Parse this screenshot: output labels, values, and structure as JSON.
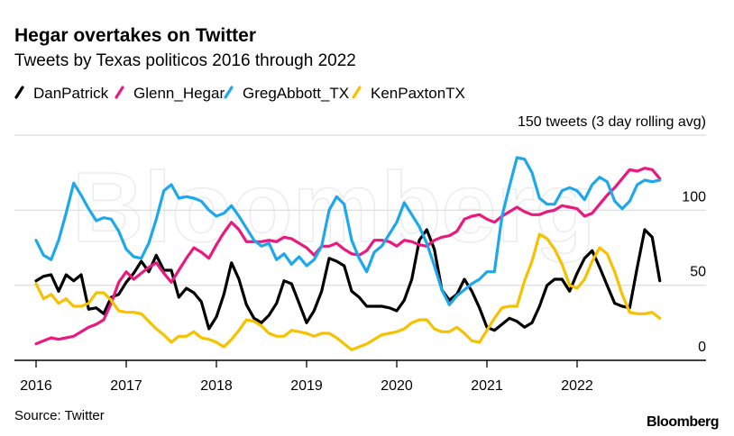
{
  "title": "Hegar overtakes on Twitter",
  "subtitle": "Tweets by Texas politicos 2016 through 2022",
  "source": "Source: Twitter",
  "logo": "Bloomberg",
  "watermark": "Bloomberg",
  "chart_data": {
    "type": "line",
    "title": "Hegar overtakes on Twitter",
    "subtitle": "Tweets by Texas politicos 2016 through 2022",
    "ylabel": "150 tweets (3 day rolling avg)",
    "ylim": [
      0,
      150
    ],
    "yticks": [
      "0",
      "50",
      "100",
      "150 tweets (3 day rolling avg)"
    ],
    "ytick_values": [
      0,
      50,
      100,
      150
    ],
    "xticks": [
      "2016",
      "2017",
      "2018",
      "2019",
      "2020",
      "2021",
      "2022"
    ],
    "xlim": [
      "2016-01",
      "2022-12"
    ],
    "grid": true,
    "legend_placement": "top-left",
    "x": [
      "2016-01",
      "2016-02",
      "2016-03",
      "2016-04",
      "2016-05",
      "2016-06",
      "2016-07",
      "2016-08",
      "2016-09",
      "2016-10",
      "2016-11",
      "2016-12",
      "2017-01",
      "2017-02",
      "2017-03",
      "2017-04",
      "2017-05",
      "2017-06",
      "2017-07",
      "2017-08",
      "2017-09",
      "2017-10",
      "2017-11",
      "2017-12",
      "2018-01",
      "2018-02",
      "2018-03",
      "2018-04",
      "2018-05",
      "2018-06",
      "2018-07",
      "2018-08",
      "2018-09",
      "2018-10",
      "2018-11",
      "2018-12",
      "2019-01",
      "2019-02",
      "2019-03",
      "2019-04",
      "2019-05",
      "2019-06",
      "2019-07",
      "2019-08",
      "2019-09",
      "2019-10",
      "2019-11",
      "2019-12",
      "2020-01",
      "2020-02",
      "2020-03",
      "2020-04",
      "2020-05",
      "2020-06",
      "2020-07",
      "2020-08",
      "2020-09",
      "2020-10",
      "2020-11",
      "2020-12",
      "2021-01",
      "2021-02",
      "2021-03",
      "2021-04",
      "2021-05",
      "2021-06",
      "2021-07",
      "2021-08",
      "2021-09",
      "2021-10",
      "2021-11",
      "2021-12",
      "2022-01",
      "2022-02",
      "2022-03",
      "2022-04",
      "2022-05",
      "2022-06",
      "2022-07",
      "2022-08",
      "2022-09",
      "2022-10",
      "2022-11",
      "2022-12"
    ],
    "series": [
      {
        "name": "DanPatrick",
        "color": "#000000",
        "values": [
          53,
          56,
          57,
          46,
          57,
          53,
          57,
          34,
          35,
          31,
          42,
          44,
          52,
          58,
          66,
          59,
          70,
          60,
          60,
          42,
          48,
          45,
          39,
          21,
          29,
          44,
          65,
          54,
          37,
          28,
          25,
          30,
          38,
          53,
          51,
          38,
          25,
          33,
          46,
          68,
          66,
          63,
          46,
          42,
          36,
          36,
          36,
          35,
          33,
          40,
          54,
          80,
          87,
          74,
          47,
          40,
          44,
          54,
          46,
          35,
          22,
          20,
          24,
          28,
          26,
          22,
          25,
          36,
          50,
          54,
          54,
          46,
          58,
          68,
          73,
          62,
          50,
          38,
          36,
          35,
          62,
          87,
          82,
          53
        ]
      },
      {
        "name": "Glenn_Hegar",
        "color": "#e8197f",
        "values": [
          11,
          13,
          15,
          14,
          15,
          16,
          19,
          22,
          24,
          27,
          38,
          52,
          59,
          54,
          58,
          62,
          65,
          58,
          52,
          60,
          68,
          75,
          72,
          68,
          77,
          85,
          92,
          87,
          79,
          79,
          79,
          80,
          79,
          82,
          81,
          78,
          75,
          70,
          76,
          76,
          78,
          74,
          71,
          70,
          73,
          80,
          80,
          79,
          76,
          80,
          79,
          77,
          76,
          80,
          82,
          83,
          86,
          94,
          96,
          97,
          94,
          92,
          96,
          99,
          102,
          99,
          97,
          97,
          99,
          100,
          103,
          102,
          101,
          96,
          98,
          104,
          110,
          115,
          121,
          127,
          126,
          128,
          127,
          121
        ]
      },
      {
        "name": "GregAbbott_TX",
        "color": "#1ea8ec",
        "values": [
          80,
          70,
          67,
          80,
          98,
          118,
          110,
          101,
          93,
          95,
          94,
          86,
          74,
          69,
          68,
          78,
          94,
          113,
          117,
          108,
          109,
          108,
          106,
          100,
          96,
          98,
          103,
          96,
          88,
          80,
          76,
          78,
          67,
          71,
          64,
          69,
          63,
          67,
          76,
          100,
          109,
          104,
          80,
          68,
          59,
          72,
          76,
          84,
          92,
          105,
          97,
          89,
          78,
          63,
          47,
          37,
          43,
          47,
          51,
          54,
          59,
          59,
          96,
          116,
          135,
          134,
          125,
          108,
          104,
          104,
          113,
          115,
          113,
          107,
          117,
          122,
          119,
          106,
          101,
          106,
          117,
          120,
          119,
          120
        ]
      },
      {
        "name": "KenPaxtonTX",
        "color": "#f6c100",
        "values": [
          51,
          41,
          44,
          38,
          41,
          36,
          36,
          38,
          45,
          45,
          40,
          33,
          32,
          32,
          31,
          26,
          21,
          17,
          12,
          16,
          16,
          19,
          15,
          14,
          12,
          9,
          14,
          20,
          27,
          26,
          23,
          18,
          16,
          16,
          20,
          19,
          18,
          16,
          18,
          18,
          15,
          11,
          7,
          9,
          11,
          14,
          17,
          18,
          19,
          21,
          25,
          27,
          27,
          21,
          19,
          19,
          22,
          18,
          13,
          12,
          20,
          28,
          35,
          36,
          36,
          53,
          66,
          84,
          81,
          74,
          64,
          50,
          48,
          54,
          66,
          75,
          71,
          59,
          44,
          32,
          31,
          31,
          32,
          28
        ]
      }
    ]
  }
}
